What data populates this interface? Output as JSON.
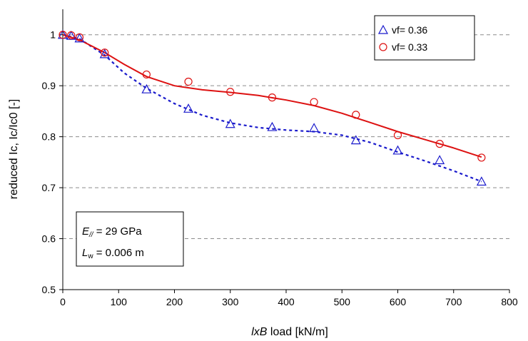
{
  "chart_data": {
    "type": "scatter",
    "xlabel": {
      "italic": "lxB",
      "rest": " load  [kN/m]"
    },
    "ylabel": "reduced Ic, Ic/Ic0 [-]",
    "xlim": [
      0,
      800
    ],
    "ylim": [
      0.5,
      1.05
    ],
    "xticks": [
      0,
      100,
      200,
      300,
      400,
      500,
      600,
      700,
      800
    ],
    "yticks": [
      0.5,
      0.6,
      0.7,
      0.8,
      0.9,
      1
    ],
    "xtick_labels": [
      "0",
      "100",
      "200",
      "300",
      "400",
      "500",
      "600",
      "700",
      "800"
    ],
    "ytick_labels": [
      "0.5",
      "0.6",
      "0.7",
      "0.8",
      "0.9",
      "1"
    ],
    "grid": "horizontal dashed",
    "legend_position": "top-right",
    "series": [
      {
        "name": "vf= 0.36",
        "marker": "triangle",
        "color": "#1a1acc",
        "line_style": "dotted",
        "x": [
          0,
          15,
          30,
          75,
          150,
          225,
          300,
          375,
          450,
          525,
          600,
          675,
          750
        ],
        "y": [
          1.0,
          0.998,
          0.993,
          0.962,
          0.893,
          0.855,
          0.825,
          0.819,
          0.817,
          0.793,
          0.773,
          0.754,
          0.712
        ],
        "fit_x": [
          0,
          30,
          75,
          110,
          150,
          200,
          250,
          300,
          350,
          400,
          450,
          500,
          550,
          600,
          650,
          700,
          750
        ],
        "fit_y": [
          1.0,
          0.992,
          0.96,
          0.925,
          0.895,
          0.865,
          0.842,
          0.827,
          0.818,
          0.813,
          0.81,
          0.803,
          0.789,
          0.77,
          0.752,
          0.733,
          0.712
        ]
      },
      {
        "name": "vf= 0.33",
        "marker": "circle",
        "color": "#dd1111",
        "line_style": "solid",
        "x": [
          0,
          15,
          30,
          75,
          150,
          225,
          300,
          375,
          450,
          525,
          600,
          675,
          750
        ],
        "y": [
          1.0,
          0.999,
          0.995,
          0.965,
          0.922,
          0.908,
          0.888,
          0.877,
          0.868,
          0.843,
          0.803,
          0.786,
          0.759
        ],
        "fit_x": [
          0,
          30,
          75,
          110,
          150,
          200,
          250,
          300,
          350,
          400,
          450,
          500,
          550,
          600,
          650,
          700,
          750
        ],
        "fit_y": [
          1.0,
          0.99,
          0.965,
          0.942,
          0.918,
          0.9,
          0.892,
          0.887,
          0.881,
          0.872,
          0.861,
          0.846,
          0.828,
          0.81,
          0.794,
          0.778,
          0.76
        ]
      }
    ],
    "annotation": {
      "line1": {
        "symbol": "E",
        "sub": "//",
        "rest": " = 29 GPa"
      },
      "line2": {
        "symbol": "L",
        "sub": "w",
        "rest": " = 0.006 m"
      }
    }
  }
}
